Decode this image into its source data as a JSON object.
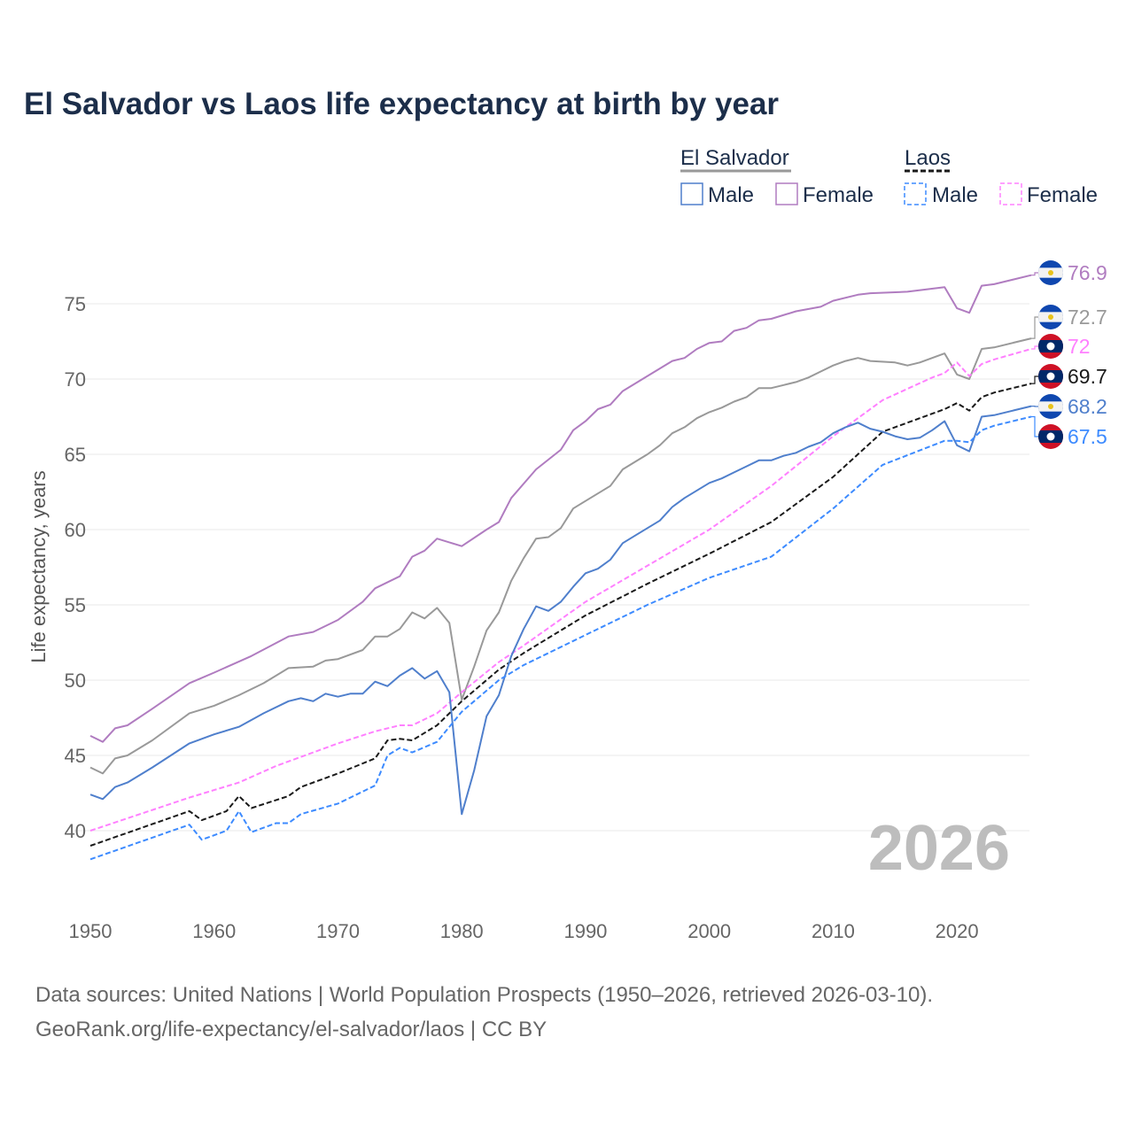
{
  "chart_data": {
    "type": "line",
    "title": "El Salvador vs Laos life expectancy at birth by year",
    "xlabel": "",
    "ylabel": "Life expectancy, years",
    "xlim": [
      1950,
      2026
    ],
    "ylim": [
      35.5,
      78.5
    ],
    "x_ticks": [
      "1950",
      "1960",
      "1970",
      "1980",
      "1990",
      "2000",
      "2010",
      "2020"
    ],
    "y_ticks": [
      "40",
      "45",
      "50",
      "55",
      "60",
      "65",
      "70",
      "75"
    ],
    "grid": true,
    "watermark_year": "2026",
    "legend": {
      "placement": "top-right",
      "groups": [
        {
          "title": "El Salvador",
          "items": [
            "Male",
            "Female"
          ]
        },
        {
          "title": "Laos",
          "items": [
            "Male",
            "Female"
          ]
        }
      ]
    },
    "series": [
      {
        "name": "El Salvador Female",
        "country": "El Salvador",
        "color": "#b07cc0",
        "dashed": false,
        "end_label": "76.9",
        "points": [
          [
            1950,
            46.3
          ],
          [
            1951,
            45.9
          ],
          [
            1952,
            46.8
          ],
          [
            1953,
            47.0
          ],
          [
            1955,
            48.1
          ],
          [
            1958,
            49.8
          ],
          [
            1960,
            50.5
          ],
          [
            1963,
            51.6
          ],
          [
            1966,
            52.9
          ],
          [
            1968,
            53.2
          ],
          [
            1970,
            54.0
          ],
          [
            1972,
            55.2
          ],
          [
            1973,
            56.1
          ],
          [
            1975,
            56.9
          ],
          [
            1976,
            58.2
          ],
          [
            1977,
            58.6
          ],
          [
            1978,
            59.4
          ],
          [
            1980,
            58.9
          ],
          [
            1982,
            60.0
          ],
          [
            1983,
            60.5
          ],
          [
            1984,
            62.1
          ],
          [
            1986,
            64.0
          ],
          [
            1988,
            65.3
          ],
          [
            1989,
            66.6
          ],
          [
            1990,
            67.2
          ],
          [
            1991,
            68.0
          ],
          [
            1992,
            68.3
          ],
          [
            1993,
            69.2
          ],
          [
            1995,
            70.2
          ],
          [
            1997,
            71.2
          ],
          [
            1998,
            71.4
          ],
          [
            1999,
            72.0
          ],
          [
            2000,
            72.4
          ],
          [
            2001,
            72.5
          ],
          [
            2002,
            73.2
          ],
          [
            2003,
            73.4
          ],
          [
            2004,
            73.9
          ],
          [
            2005,
            74.0
          ],
          [
            2007,
            74.5
          ],
          [
            2009,
            74.8
          ],
          [
            2010,
            75.2
          ],
          [
            2012,
            75.6
          ],
          [
            2013,
            75.7
          ],
          [
            2016,
            75.8
          ],
          [
            2019,
            76.1
          ],
          [
            2020,
            74.7
          ],
          [
            2021,
            74.4
          ],
          [
            2022,
            76.2
          ],
          [
            2023,
            76.3
          ],
          [
            2026,
            76.9
          ]
        ]
      },
      {
        "name": "El Salvador Total",
        "country": "El Salvador",
        "color": "#999999",
        "dashed": false,
        "end_label": "72.7",
        "points": [
          [
            1950,
            44.2
          ],
          [
            1951,
            43.8
          ],
          [
            1952,
            44.8
          ],
          [
            1953,
            45.0
          ],
          [
            1955,
            46.0
          ],
          [
            1958,
            47.8
          ],
          [
            1960,
            48.3
          ],
          [
            1962,
            49.0
          ],
          [
            1964,
            49.8
          ],
          [
            1966,
            50.8
          ],
          [
            1968,
            50.9
          ],
          [
            1969,
            51.3
          ],
          [
            1970,
            51.4
          ],
          [
            1972,
            52.0
          ],
          [
            1973,
            52.9
          ],
          [
            1974,
            52.9
          ],
          [
            1975,
            53.4
          ],
          [
            1976,
            54.5
          ],
          [
            1977,
            54.1
          ],
          [
            1978,
            54.8
          ],
          [
            1979,
            53.8
          ],
          [
            1980,
            48.7
          ],
          [
            1981,
            50.9
          ],
          [
            1982,
            53.3
          ],
          [
            1983,
            54.5
          ],
          [
            1984,
            56.6
          ],
          [
            1985,
            58.1
          ],
          [
            1986,
            59.4
          ],
          [
            1987,
            59.5
          ],
          [
            1988,
            60.1
          ],
          [
            1989,
            61.4
          ],
          [
            1990,
            61.9
          ],
          [
            1991,
            62.4
          ],
          [
            1992,
            62.9
          ],
          [
            1993,
            64.0
          ],
          [
            1994,
            64.5
          ],
          [
            1995,
            65.0
          ],
          [
            1996,
            65.6
          ],
          [
            1997,
            66.4
          ],
          [
            1998,
            66.8
          ],
          [
            1999,
            67.4
          ],
          [
            2000,
            67.8
          ],
          [
            2001,
            68.1
          ],
          [
            2002,
            68.5
          ],
          [
            2003,
            68.8
          ],
          [
            2004,
            69.4
          ],
          [
            2005,
            69.4
          ],
          [
            2006,
            69.6
          ],
          [
            2007,
            69.8
          ],
          [
            2008,
            70.1
          ],
          [
            2009,
            70.5
          ],
          [
            2010,
            70.9
          ],
          [
            2011,
            71.2
          ],
          [
            2012,
            71.4
          ],
          [
            2013,
            71.2
          ],
          [
            2015,
            71.1
          ],
          [
            2016,
            70.9
          ],
          [
            2017,
            71.1
          ],
          [
            2018,
            71.4
          ],
          [
            2019,
            71.7
          ],
          [
            2020,
            70.3
          ],
          [
            2021,
            70.0
          ],
          [
            2022,
            72.0
          ],
          [
            2023,
            72.1
          ],
          [
            2026,
            72.7
          ]
        ]
      },
      {
        "name": "Laos Female",
        "country": "Laos",
        "color": "#ff80ff",
        "dashed": true,
        "end_label": "72",
        "points": [
          [
            1950,
            40.0
          ],
          [
            1958,
            42.2
          ],
          [
            1960,
            42.7
          ],
          [
            1962,
            43.2
          ],
          [
            1965,
            44.3
          ],
          [
            1970,
            45.8
          ],
          [
            1973,
            46.6
          ],
          [
            1975,
            47.0
          ],
          [
            1976,
            47.0
          ],
          [
            1978,
            47.8
          ],
          [
            1980,
            49.2
          ],
          [
            1983,
            51.2
          ],
          [
            1985,
            52.3
          ],
          [
            1990,
            55.2
          ],
          [
            1995,
            57.6
          ],
          [
            2000,
            60.0
          ],
          [
            2005,
            62.9
          ],
          [
            2010,
            66.2
          ],
          [
            2014,
            68.6
          ],
          [
            2018,
            70.1
          ],
          [
            2019,
            70.4
          ],
          [
            2020,
            71.1
          ],
          [
            2021,
            70.2
          ],
          [
            2022,
            71.0
          ],
          [
            2023,
            71.3
          ],
          [
            2026,
            72.0
          ]
        ]
      },
      {
        "name": "Laos Total",
        "country": "Laos",
        "color": "#1a1a1a",
        "dashed": true,
        "end_label": "69.7",
        "points": [
          [
            1950,
            39.0
          ],
          [
            1958,
            41.3
          ],
          [
            1959,
            40.7
          ],
          [
            1961,
            41.3
          ],
          [
            1962,
            42.3
          ],
          [
            1963,
            41.5
          ],
          [
            1966,
            42.3
          ],
          [
            1967,
            42.9
          ],
          [
            1970,
            43.8
          ],
          [
            1973,
            44.8
          ],
          [
            1974,
            46.0
          ],
          [
            1975,
            46.1
          ],
          [
            1976,
            46.0
          ],
          [
            1978,
            47.0
          ],
          [
            1980,
            48.6
          ],
          [
            1983,
            50.7
          ],
          [
            1985,
            51.8
          ],
          [
            1990,
            54.3
          ],
          [
            1995,
            56.4
          ],
          [
            2000,
            58.4
          ],
          [
            2005,
            60.5
          ],
          [
            2010,
            63.5
          ],
          [
            2014,
            66.5
          ],
          [
            2019,
            68.0
          ],
          [
            2020,
            68.4
          ],
          [
            2021,
            67.9
          ],
          [
            2022,
            68.8
          ],
          [
            2023,
            69.1
          ],
          [
            2026,
            69.7
          ]
        ]
      },
      {
        "name": "El Salvador Male",
        "country": "El Salvador",
        "color": "#4f7fcc",
        "dashed": false,
        "end_label": "68.2",
        "points": [
          [
            1950,
            42.4
          ],
          [
            1951,
            42.1
          ],
          [
            1952,
            42.9
          ],
          [
            1953,
            43.2
          ],
          [
            1955,
            44.2
          ],
          [
            1958,
            45.8
          ],
          [
            1960,
            46.4
          ],
          [
            1962,
            46.9
          ],
          [
            1964,
            47.8
          ],
          [
            1966,
            48.6
          ],
          [
            1967,
            48.8
          ],
          [
            1968,
            48.6
          ],
          [
            1969,
            49.1
          ],
          [
            1970,
            48.9
          ],
          [
            1971,
            49.1
          ],
          [
            1972,
            49.1
          ],
          [
            1973,
            49.9
          ],
          [
            1974,
            49.6
          ],
          [
            1975,
            50.3
          ],
          [
            1976,
            50.8
          ],
          [
            1977,
            50.1
          ],
          [
            1978,
            50.6
          ],
          [
            1979,
            49.2
          ],
          [
            1980,
            41.1
          ],
          [
            1981,
            44.0
          ],
          [
            1982,
            47.6
          ],
          [
            1983,
            49.0
          ],
          [
            1984,
            51.6
          ],
          [
            1985,
            53.4
          ],
          [
            1986,
            54.9
          ],
          [
            1987,
            54.6
          ],
          [
            1988,
            55.2
          ],
          [
            1989,
            56.2
          ],
          [
            1990,
            57.1
          ],
          [
            1991,
            57.4
          ],
          [
            1992,
            58.0
          ],
          [
            1993,
            59.1
          ],
          [
            1994,
            59.6
          ],
          [
            1995,
            60.1
          ],
          [
            1996,
            60.6
          ],
          [
            1997,
            61.5
          ],
          [
            1998,
            62.1
          ],
          [
            1999,
            62.6
          ],
          [
            2000,
            63.1
          ],
          [
            2001,
            63.4
          ],
          [
            2002,
            63.8
          ],
          [
            2003,
            64.2
          ],
          [
            2004,
            64.6
          ],
          [
            2005,
            64.6
          ],
          [
            2006,
            64.9
          ],
          [
            2007,
            65.1
          ],
          [
            2008,
            65.5
          ],
          [
            2009,
            65.8
          ],
          [
            2010,
            66.4
          ],
          [
            2011,
            66.8
          ],
          [
            2012,
            67.1
          ],
          [
            2013,
            66.7
          ],
          [
            2014,
            66.5
          ],
          [
            2015,
            66.2
          ],
          [
            2016,
            66.0
          ],
          [
            2017,
            66.1
          ],
          [
            2018,
            66.6
          ],
          [
            2019,
            67.2
          ],
          [
            2020,
            65.6
          ],
          [
            2021,
            65.2
          ],
          [
            2022,
            67.5
          ],
          [
            2023,
            67.6
          ],
          [
            2026,
            68.2
          ]
        ]
      },
      {
        "name": "Laos Male",
        "country": "Laos",
        "color": "#3d8bff",
        "dashed": true,
        "end_label": "67.5",
        "points": [
          [
            1950,
            38.1
          ],
          [
            1958,
            40.4
          ],
          [
            1959,
            39.4
          ],
          [
            1961,
            40.0
          ],
          [
            1962,
            41.3
          ],
          [
            1963,
            39.9
          ],
          [
            1965,
            40.5
          ],
          [
            1966,
            40.5
          ],
          [
            1967,
            41.1
          ],
          [
            1970,
            41.8
          ],
          [
            1973,
            43.0
          ],
          [
            1974,
            45.0
          ],
          [
            1975,
            45.5
          ],
          [
            1976,
            45.2
          ],
          [
            1978,
            45.9
          ],
          [
            1980,
            47.9
          ],
          [
            1983,
            50.0
          ],
          [
            1985,
            51.0
          ],
          [
            1990,
            53.0
          ],
          [
            1995,
            55.0
          ],
          [
            2000,
            56.8
          ],
          [
            2005,
            58.2
          ],
          [
            2010,
            61.4
          ],
          [
            2014,
            64.3
          ],
          [
            2019,
            65.9
          ],
          [
            2020,
            65.9
          ],
          [
            2021,
            65.8
          ],
          [
            2022,
            66.6
          ],
          [
            2023,
            66.9
          ],
          [
            2026,
            67.5
          ]
        ]
      }
    ]
  },
  "source": {
    "line1": "Data sources: United Nations | World Population Prospects (1950–2026, retrieved 2026-03-10).",
    "line2": "GeoRank.org/life-expectancy/el-salvador/laos | CC BY"
  }
}
